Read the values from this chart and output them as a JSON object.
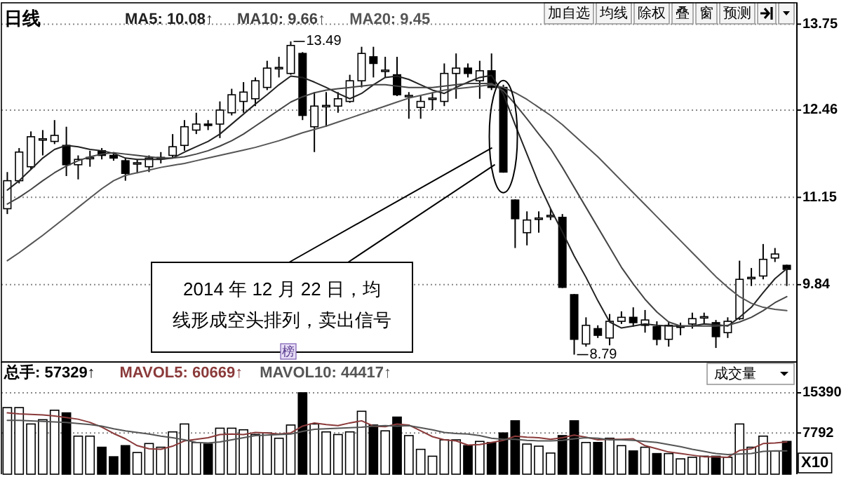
{
  "chart_data": [
    {
      "type": "candlestick",
      "title": "日线",
      "categories": [
        null,
        null,
        null,
        null,
        null,
        null,
        null,
        null,
        null,
        null,
        null,
        null,
        null,
        null,
        null,
        null,
        null,
        null,
        null,
        null,
        null,
        null,
        null,
        null,
        null,
        null,
        null,
        null,
        null,
        null,
        null,
        null,
        null,
        null,
        null,
        null,
        null,
        null,
        null,
        null,
        null,
        null,
        null,
        null,
        null,
        null,
        null,
        null,
        null,
        null,
        null,
        null,
        null,
        null,
        null,
        null,
        null,
        null,
        null,
        null,
        null,
        null,
        null,
        null,
        null,
        null,
        null
      ],
      "ohlc": [
        [
          10.98,
          11.53,
          10.9,
          11.4
        ],
        [
          11.4,
          11.89,
          11.36,
          11.83
        ],
        [
          11.61,
          12.14,
          11.57,
          12.06
        ],
        [
          12.02,
          12.16,
          11.78,
          12.03
        ],
        [
          11.99,
          12.31,
          11.95,
          12.08
        ],
        [
          11.93,
          12.21,
          11.47,
          11.64
        ],
        [
          11.64,
          11.78,
          11.42,
          11.72
        ],
        [
          11.74,
          11.85,
          11.61,
          11.75
        ],
        [
          11.85,
          11.89,
          11.72,
          11.78
        ],
        [
          11.78,
          11.83,
          11.7,
          11.74
        ],
        [
          11.7,
          11.74,
          11.4,
          11.51
        ],
        [
          11.66,
          11.72,
          11.51,
          11.67
        ],
        [
          11.61,
          11.78,
          11.53,
          11.74
        ],
        [
          11.74,
          11.83,
          11.66,
          11.75
        ],
        [
          11.78,
          12.1,
          11.74,
          11.91
        ],
        [
          11.93,
          12.31,
          11.85,
          12.21
        ],
        [
          12.16,
          12.42,
          12.1,
          12.25
        ],
        [
          12.25,
          12.31,
          12.16,
          12.23
        ],
        [
          12.25,
          12.59,
          12.04,
          12.46
        ],
        [
          12.42,
          12.78,
          12.38,
          12.69
        ],
        [
          12.59,
          12.88,
          12.42,
          12.73
        ],
        [
          12.63,
          12.95,
          12.52,
          12.9
        ],
        [
          12.8,
          13.2,
          12.76,
          13.09
        ],
        [
          13.09,
          13.26,
          12.95,
          13.1
        ],
        [
          13.01,
          13.49,
          12.99,
          13.43
        ],
        [
          13.31,
          13.33,
          12.31,
          12.38
        ],
        [
          12.21,
          12.73,
          11.83,
          12.52
        ],
        [
          12.52,
          12.73,
          12.21,
          12.53
        ],
        [
          12.52,
          12.73,
          12.42,
          12.63
        ],
        [
          12.59,
          12.99,
          12.57,
          12.9
        ],
        [
          12.9,
          13.41,
          12.8,
          13.31
        ],
        [
          13.26,
          13.41,
          12.95,
          13.16
        ],
        [
          13.05,
          13.26,
          12.95,
          13.06
        ],
        [
          12.99,
          13.26,
          12.67,
          12.69
        ],
        [
          12.67,
          12.73,
          12.33,
          12.68
        ],
        [
          12.5,
          12.67,
          12.33,
          12.59
        ],
        [
          12.63,
          12.73,
          12.46,
          12.64
        ],
        [
          12.59,
          13.16,
          12.52,
          13.01
        ],
        [
          13.01,
          13.31,
          12.63,
          13.09
        ],
        [
          13.09,
          13.16,
          12.95,
          13.01
        ],
        [
          12.9,
          13.2,
          12.63,
          13.05
        ],
        [
          13.05,
          13.31,
          12.76,
          12.8
        ],
        [
          12.8,
          12.84,
          11.52,
          11.53
        ],
        [
          11.11,
          11.12,
          10.39,
          10.83
        ],
        [
          10.62,
          10.94,
          10.43,
          10.81
        ],
        [
          10.83,
          10.94,
          10.62,
          10.84
        ],
        [
          10.87,
          10.98,
          10.81,
          10.88
        ],
        [
          10.85,
          10.9,
          9.79,
          9.8
        ],
        [
          9.69,
          9.7,
          8.79,
          9.02
        ],
        [
          8.95,
          9.35,
          8.91,
          9.23
        ],
        [
          9.18,
          9.23,
          9.04,
          9.08
        ],
        [
          9.04,
          9.4,
          8.93,
          9.29
        ],
        [
          9.29,
          9.44,
          9.25,
          9.35
        ],
        [
          9.35,
          9.5,
          9.21,
          9.27
        ],
        [
          9.23,
          9.46,
          9.12,
          9.31
        ],
        [
          9.21,
          9.29,
          8.93,
          9.02
        ],
        [
          9.02,
          9.29,
          8.91,
          9.23
        ],
        [
          9.21,
          9.27,
          9.08,
          9.22
        ],
        [
          9.25,
          9.42,
          9.18,
          9.33
        ],
        [
          9.35,
          9.42,
          9.25,
          9.36
        ],
        [
          9.27,
          9.31,
          8.89,
          9.06
        ],
        [
          9.12,
          9.35,
          9.04,
          9.29
        ],
        [
          9.33,
          10.2,
          9.31,
          9.92
        ],
        [
          9.94,
          10.09,
          9.82,
          9.95
        ],
        [
          9.97,
          10.45,
          9.92,
          10.22
        ],
        [
          10.24,
          10.39,
          10.18,
          10.3
        ],
        [
          10.13,
          10.14,
          9.82,
          10.07
        ]
      ],
      "series": [
        {
          "type": "line",
          "name": "MA5: 10.08↑",
          "color": "#222222",
          "values": [
            11.26,
            11.4,
            11.57,
            11.74,
            11.87,
            11.93,
            11.91,
            11.87,
            11.85,
            11.81,
            11.74,
            11.72,
            11.72,
            11.72,
            11.74,
            11.83,
            11.91,
            11.99,
            12.1,
            12.25,
            12.4,
            12.55,
            12.69,
            12.84,
            12.97,
            12.95,
            12.88,
            12.8,
            12.71,
            12.63,
            12.71,
            12.84,
            12.95,
            12.97,
            12.92,
            12.84,
            12.76,
            12.71,
            12.8,
            12.88,
            12.95,
            12.98,
            12.7,
            12.24,
            11.8,
            11.36,
            10.98,
            10.63,
            10.27,
            9.95,
            9.6,
            9.28,
            9.19,
            9.22,
            9.25,
            9.23,
            9.22,
            9.22,
            9.22,
            9.25,
            9.24,
            9.22,
            9.35,
            9.5,
            9.72,
            9.93,
            10.08
          ]
        },
        {
          "type": "line",
          "name": "MA10: 9.66↑",
          "color": "#444444",
          "values": [
            11.05,
            11.15,
            11.27,
            11.4,
            11.52,
            11.62,
            11.7,
            11.76,
            11.8,
            11.82,
            11.8,
            11.78,
            11.76,
            11.74,
            11.74,
            11.76,
            11.8,
            11.85,
            11.92,
            12.0,
            12.1,
            12.22,
            12.34,
            12.46,
            12.58,
            12.66,
            12.72,
            12.76,
            12.78,
            12.8,
            12.82,
            12.84,
            12.84,
            12.82,
            12.8,
            12.8,
            12.8,
            12.82,
            12.84,
            12.86,
            12.86,
            12.86,
            12.75,
            12.55,
            12.33,
            12.1,
            11.88,
            11.6,
            11.3,
            11.0,
            10.7,
            10.4,
            10.1,
            9.85,
            9.62,
            9.43,
            9.28,
            9.22,
            9.22,
            9.22,
            9.22,
            9.23,
            9.28,
            9.35,
            9.45,
            9.57,
            9.66
          ]
        },
        {
          "type": "line",
          "name": "MA20: 9.45",
          "color": "#555555",
          "values": [
            10.2,
            10.32,
            10.45,
            10.58,
            10.72,
            10.86,
            11.0,
            11.14,
            11.28,
            11.4,
            11.48,
            11.52,
            11.56,
            11.6,
            11.63,
            11.66,
            11.7,
            11.74,
            11.78,
            11.82,
            11.86,
            11.9,
            11.95,
            12.0,
            12.06,
            12.12,
            12.17,
            12.22,
            12.28,
            12.34,
            12.4,
            12.46,
            12.52,
            12.58,
            12.64,
            12.68,
            12.72,
            12.76,
            12.78,
            12.8,
            12.82,
            12.84,
            12.8,
            12.72,
            12.62,
            12.5,
            12.38,
            12.24,
            12.08,
            11.92,
            11.76,
            11.58,
            11.4,
            11.22,
            11.04,
            10.86,
            10.68,
            10.5,
            10.32,
            10.14,
            9.96,
            9.8,
            9.66,
            9.56,
            9.5,
            9.47,
            9.45
          ]
        }
      ],
      "ylim": [
        8.68,
        14.07
      ],
      "yticks": [
        13.75,
        12.46,
        11.15,
        9.84
      ],
      "grid": "y",
      "legend": "top left",
      "tick_labels": "y",
      "annotations": [
        "2014 年 12 月 22 日，均线形成空头排列，卖出信号",
        "13.49",
        "8.79",
        "加自选",
        "均线",
        "除权",
        "叠",
        "窗",
        "预测"
      ]
    },
    {
      "type": "bar",
      "categories": [
        null,
        null,
        null,
        null,
        null,
        null,
        null,
        null,
        null,
        null,
        null,
        null,
        null,
        null,
        null,
        null,
        null,
        null,
        null,
        null,
        null,
        null,
        null,
        null,
        null,
        null,
        null,
        null,
        null,
        null,
        null,
        null,
        null,
        null,
        null,
        null,
        null,
        null,
        null,
        null,
        null,
        null,
        null,
        null,
        null,
        null,
        null,
        null,
        null,
        null,
        null,
        null,
        null,
        null,
        null,
        null,
        null,
        null,
        null,
        null,
        null,
        null,
        null,
        null,
        null,
        null,
        null
      ],
      "series": [
        {
          "name": "总手: 57329↑",
          "values": [
            12600,
            12600,
            9500,
            10300,
            12100,
            11600,
            7200,
            7200,
            5100,
            3300,
            5400,
            4100,
            5800,
            5100,
            8000,
            9500,
            6000,
            5700,
            8700,
            8700,
            8400,
            7500,
            7800,
            6800,
            9300,
            15400,
            9500,
            8000,
            7500,
            8000,
            11900,
            9300,
            8200,
            10800,
            7300,
            4700,
            3400,
            6500,
            6500,
            5400,
            6200,
            6000,
            7800,
            10100,
            5700,
            5300,
            4000,
            7300,
            10100,
            6000,
            6000,
            6800,
            5400,
            4400,
            5100,
            3900,
            3900,
            2900,
            3200,
            3400,
            3400,
            3200,
            9500,
            5100,
            7200,
            4400,
            6200
          ],
          "colors": [
            "#ffffff",
            "#ffffff",
            "#ffffff",
            "#ffffff",
            "#ffffff",
            "#000000",
            "#ffffff",
            "#ffffff",
            "#000000",
            "#000000",
            "#000000",
            "#ffffff",
            "#ffffff",
            "#ffffff",
            "#ffffff",
            "#ffffff",
            "#ffffff",
            "#000000",
            "#ffffff",
            "#ffffff",
            "#ffffff",
            "#ffffff",
            "#ffffff",
            "#ffffff",
            "#ffffff",
            "#000000",
            "#ffffff",
            "#ffffff",
            "#ffffff",
            "#ffffff",
            "#ffffff",
            "#000000",
            "#ffffff",
            "#000000",
            "#ffffff",
            "#ffffff",
            "#ffffff",
            "#ffffff",
            "#ffffff",
            "#000000",
            "#ffffff",
            "#000000",
            "#000000",
            "#000000",
            "#ffffff",
            "#ffffff",
            "#ffffff",
            "#000000",
            "#000000",
            "#ffffff",
            "#000000",
            "#ffffff",
            "#ffffff",
            "#000000",
            "#ffffff",
            "#000000",
            "#ffffff",
            "#ffffff",
            "#ffffff",
            "#ffffff",
            "#000000",
            "#ffffff",
            "#ffffff",
            "#ffffff",
            "#ffffff",
            "#ffffff",
            "#000000"
          ]
        },
        {
          "type": "line",
          "name": "MAVOL5: 60669↑",
          "color": "#8b3a3a",
          "values": [
            11600,
            11400,
            11300,
            11200,
            11000,
            10700,
            10400,
            9800,
            8900,
            7700,
            6700,
            5400,
            4800,
            4700,
            5300,
            6300,
            6600,
            6900,
            7500,
            7600,
            7500,
            7900,
            7800,
            7600,
            7800,
            9100,
            9700,
            9400,
            9200,
            9700,
            10100,
            9100,
            9000,
            9500,
            9300,
            8200,
            7100,
            6500,
            6300,
            5500,
            5600,
            6000,
            6400,
            7200,
            7000,
            6900,
            6600,
            6900,
            7400,
            7000,
            6500,
            6600,
            6600,
            6700,
            5400,
            4800,
            4200,
            3900,
            3600,
            3300,
            3300,
            3200,
            4500,
            4800,
            5800,
            5900,
            6100
          ]
        },
        {
          "type": "line",
          "name": "MAVOL10: 44417↑",
          "color": "#555555",
          "values": [
            10200,
            10200,
            10100,
            10000,
            9900,
            9800,
            9600,
            9400,
            9100,
            8600,
            8200,
            7900,
            7600,
            7200,
            6900,
            6500,
            6000,
            5900,
            6100,
            6500,
            6900,
            7300,
            7400,
            7500,
            7600,
            8100,
            8500,
            8600,
            8700,
            8800,
            8900,
            9100,
            9200,
            9100,
            9200,
            8800,
            8400,
            7900,
            7700,
            7600,
            7300,
            6800,
            6600,
            6600,
            6400,
            6300,
            6300,
            6400,
            6700,
            6900,
            6800,
            6500,
            6500,
            6400,
            6200,
            6000,
            5600,
            5200,
            4700,
            4300,
            3900,
            3700,
            3800,
            3900,
            4300,
            4400,
            4400
          ]
        }
      ],
      "ylim": [
        0,
        21230
      ],
      "yticks": [
        15390,
        7792
      ],
      "ylabel": "X10",
      "grid": "y",
      "legend": "top left",
      "tick_labels": "y",
      "annotations": [
        "成交量",
        "榜"
      ]
    }
  ]
}
